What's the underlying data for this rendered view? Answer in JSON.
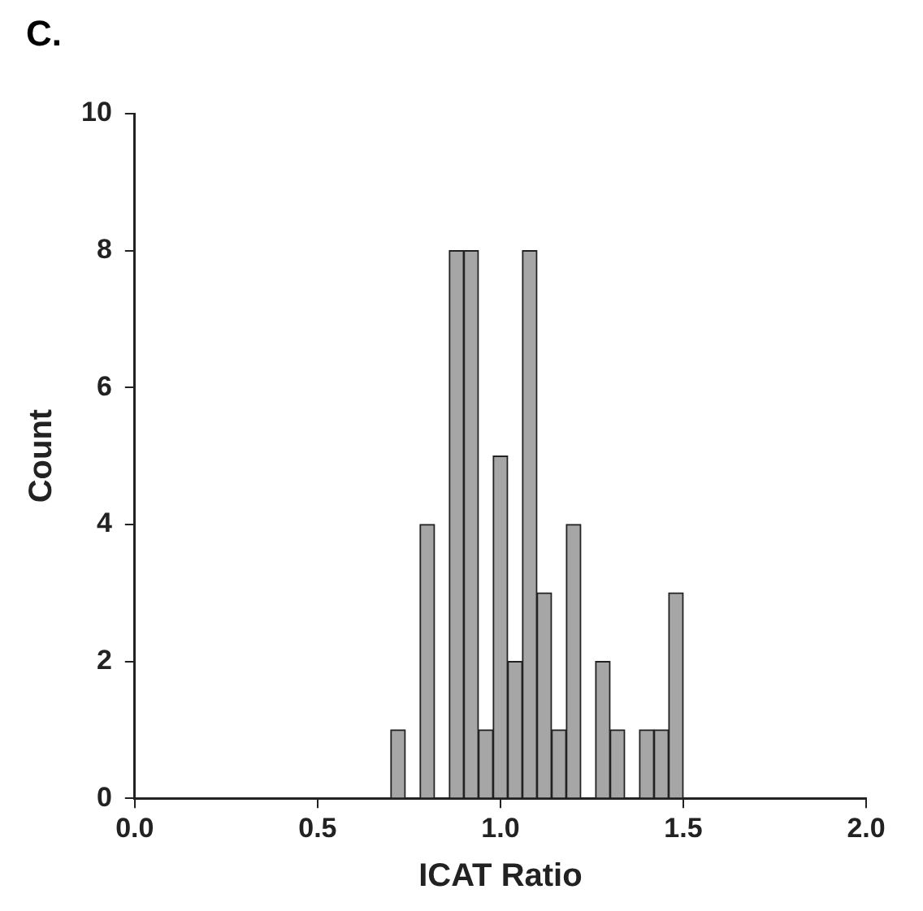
{
  "chart_data": {
    "type": "histogram",
    "title": "C.",
    "xlabel": "ICAT Ratio",
    "ylabel": "Count",
    "bins": [
      0.7,
      0.74,
      0.78,
      0.82,
      0.86,
      0.9,
      0.94,
      0.98,
      1.02,
      1.06,
      1.1,
      1.14,
      1.18,
      1.22,
      1.26,
      1.3,
      1.34,
      1.38,
      1.42,
      1.46,
      1.5
    ],
    "values": [
      1,
      0,
      4,
      0,
      8,
      8,
      1,
      5,
      2,
      8,
      3,
      1,
      4,
      0,
      2,
      1,
      0,
      1,
      1,
      3
    ],
    "color": "#a6a6a6",
    "xlim": [
      0,
      2
    ],
    "xticks": [
      {
        "value": 0,
        "label": "0.0"
      },
      {
        "value": 0.5,
        "label": "0.5"
      },
      {
        "value": 1,
        "label": "1.0"
      },
      {
        "value": 1.5,
        "label": "1.5"
      },
      {
        "value": 2,
        "label": "2.0"
      }
    ],
    "ylim": [
      0,
      10
    ],
    "yticks": [
      0,
      2,
      4,
      6,
      8,
      10
    ],
    "grid": false,
    "legend": false
  }
}
